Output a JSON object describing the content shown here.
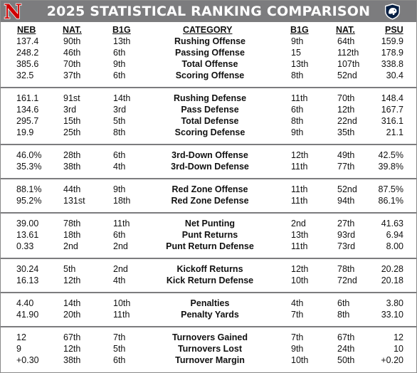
{
  "title": "2025 STATISTICAL RANKING COMPARISON",
  "logos": {
    "left": "nebraska-n-logo",
    "right": "penn-state-lion-logo",
    "left_letter": "N"
  },
  "colors": {
    "header_bg": "#7c7c7e",
    "separator": "#7c7c7e",
    "nebraska_red": "#d00000",
    "psu_navy": "#041e42"
  },
  "columns": {
    "neb": "NEB",
    "neb_nat": "NAT.",
    "neb_b1g": "B1G",
    "category": "CATEGORY",
    "psu_b1g": "B1G",
    "psu_nat": "NAT.",
    "psu": "PSU"
  },
  "groups": [
    {
      "rows": [
        {
          "neb": "137.4",
          "neb_nat": "90th",
          "neb_b1g": "13th",
          "category": "Rushing Offense",
          "psu_b1g": "9th",
          "psu_nat": "64th",
          "psu": "159.9"
        },
        {
          "neb": "248.2",
          "neb_nat": "46th",
          "neb_b1g": "6th",
          "category": "Passing Offense",
          "psu_b1g": "15",
          "psu_nat": "112th",
          "psu": "178.9"
        },
        {
          "neb": "385.6",
          "neb_nat": "70th",
          "neb_b1g": "9th",
          "category": "Total Offense",
          "psu_b1g": "13th",
          "psu_nat": "107th",
          "psu": "338.8"
        },
        {
          "neb": "32.5",
          "neb_nat": "37th",
          "neb_b1g": "6th",
          "category": "Scoring Offense",
          "psu_b1g": "8th",
          "psu_nat": "52nd",
          "psu": "30.4"
        }
      ]
    },
    {
      "rows": [
        {
          "neb": "161.1",
          "neb_nat": "91st",
          "neb_b1g": "14th",
          "category": "Rushing Defense",
          "psu_b1g": "11th",
          "psu_nat": "70th",
          "psu": "148.4"
        },
        {
          "neb": "134.6",
          "neb_nat": "3rd",
          "neb_b1g": "3rd",
          "category": "Pass Defense",
          "psu_b1g": "6th",
          "psu_nat": "12th",
          "psu": "167.7"
        },
        {
          "neb": "295.7",
          "neb_nat": "15th",
          "neb_b1g": "5th",
          "category": "Total Defense",
          "psu_b1g": "8th",
          "psu_nat": "22nd",
          "psu": "316.1"
        },
        {
          "neb": "19.9",
          "neb_nat": "25th",
          "neb_b1g": "8th",
          "category": "Scoring Defense",
          "psu_b1g": "9th",
          "psu_nat": "35th",
          "psu": "21.1"
        }
      ]
    },
    {
      "rows": [
        {
          "neb": "46.0%",
          "neb_nat": "28th",
          "neb_b1g": "6th",
          "category": "3rd-Down Offense",
          "psu_b1g": "12th",
          "psu_nat": "49th",
          "psu": "42.5%"
        },
        {
          "neb": "35.3%",
          "neb_nat": "38th",
          "neb_b1g": "4th",
          "category": "3rd-Down Defense",
          "psu_b1g": "11th",
          "psu_nat": "77th",
          "psu": "39.8%"
        }
      ]
    },
    {
      "rows": [
        {
          "neb": "88.1%",
          "neb_nat": "44th",
          "neb_b1g": "9th",
          "category": "Red Zone Offense",
          "psu_b1g": "11th",
          "psu_nat": "52nd",
          "psu": "87.5%"
        },
        {
          "neb": "95.2%",
          "neb_nat": "131st",
          "neb_b1g": "18th",
          "category": "Red Zone Defense",
          "psu_b1g": "11th",
          "psu_nat": "94th",
          "psu": "86.1%"
        }
      ]
    },
    {
      "rows": [
        {
          "neb": "39.00",
          "neb_nat": "78th",
          "neb_b1g": "11th",
          "category": "Net Punting",
          "psu_b1g": "2nd",
          "psu_nat": "27th",
          "psu": "41.63"
        },
        {
          "neb": "13.61",
          "neb_nat": "18th",
          "neb_b1g": "6th",
          "category": "Punt Returns",
          "psu_b1g": "13th",
          "psu_nat": "93rd",
          "psu": "6.94"
        },
        {
          "neb": "0.33",
          "neb_nat": "2nd",
          "neb_b1g": "2nd",
          "category": "Punt Return Defense",
          "psu_b1g": "11th",
          "psu_nat": "73rd",
          "psu": "8.00"
        }
      ]
    },
    {
      "rows": [
        {
          "neb": "30.24",
          "neb_nat": "5th",
          "neb_b1g": "2nd",
          "category": "Kickoff Returns",
          "psu_b1g": "12th",
          "psu_nat": "78th",
          "psu": "20.28"
        },
        {
          "neb": "16.13",
          "neb_nat": "12th",
          "neb_b1g": "4th",
          "category": "Kick Return Defense",
          "psu_b1g": "10th",
          "psu_nat": "72nd",
          "psu": "20.18"
        }
      ]
    },
    {
      "rows": [
        {
          "neb": "4.40",
          "neb_nat": "14th",
          "neb_b1g": "10th",
          "category": "Penalties",
          "psu_b1g": "4th",
          "psu_nat": "6th",
          "psu": "3.80"
        },
        {
          "neb": "41.90",
          "neb_nat": "20th",
          "neb_b1g": "11th",
          "category": "Penalty Yards",
          "psu_b1g": "7th",
          "psu_nat": "8th",
          "psu": "33.10"
        }
      ]
    },
    {
      "rows": [
        {
          "neb": "12",
          "neb_nat": "67th",
          "neb_b1g": "7th",
          "category": "Turnovers Gained",
          "psu_b1g": "7th",
          "psu_nat": "67th",
          "psu": "12"
        },
        {
          "neb": "9",
          "neb_nat": "12th",
          "neb_b1g": "5th",
          "category": "Turnovers Lost",
          "psu_b1g": "9th",
          "psu_nat": "24th",
          "psu": "10"
        },
        {
          "neb": "+0.30",
          "neb_nat": "38th",
          "neb_b1g": "6th",
          "category": "Turnover Margin",
          "psu_b1g": "10th",
          "psu_nat": "50th",
          "psu": "+0.20"
        }
      ]
    }
  ]
}
